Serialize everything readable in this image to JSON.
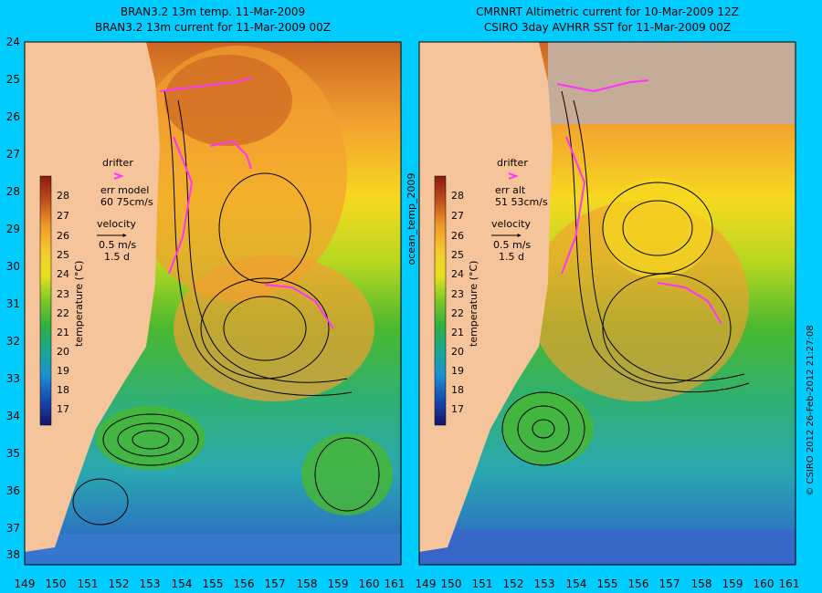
{
  "background": "#00ccff",
  "left": {
    "title1": "BRAN3.2 13m temp. 11-Mar-2009",
    "title2": "BRAN3.2 13m current for 11-Mar-2009 00Z",
    "legend": {
      "drifter": "drifter",
      "err1": "err model",
      "err2": "60 75cm/s",
      "velocity": "velocity",
      "speed": "0.5 m/s",
      "days": "1.5 d"
    }
  },
  "right": {
    "title1": "CMRNRT Altimetric current for 10-Mar-2009 12Z",
    "title2": "CSIRO 3day AVHRR SST for 11-Mar-2009 00Z",
    "legend": {
      "drifter": "drifter",
      "err1": "err alt",
      "err2": "51 53cm/s",
      "velocity": "velocity",
      "speed": "0.5 m/s",
      "days": "1.5 d"
    }
  },
  "colorbar": {
    "label": "temperature (°C)",
    "ticks": [
      "28",
      "27",
      "26",
      "25",
      "24",
      "23",
      "22",
      "21",
      "20",
      "19",
      "18",
      "17"
    ]
  },
  "lat_ticks": [
    "24",
    "25",
    "26",
    "27",
    "28",
    "29",
    "30",
    "31",
    "32",
    "33",
    "34",
    "35",
    "36",
    "37",
    "38"
  ],
  "lon_ticks": [
    "149",
    "150",
    "151",
    "152",
    "153",
    "154",
    "155",
    "156",
    "157",
    "158",
    "159",
    "160",
    "161"
  ],
  "side_label": "ocean_temp_2009",
  "credit": "© CSIRO 2012  26-Feb-2012 21:27:08",
  "colors": {
    "land": "#f6c49a",
    "drifter": "#ff33ff",
    "arrows": "#000000"
  }
}
